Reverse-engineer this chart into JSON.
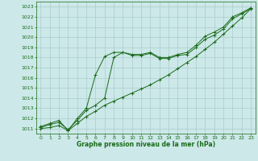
{
  "title": "Graphe pression niveau de la mer (hPa)",
  "bg_color": "#cce8e8",
  "grid_color": "#aacccc",
  "line_color": "#1a6b1a",
  "text_color": "#1a6b1a",
  "xlim": [
    -0.5,
    23.5
  ],
  "ylim": [
    1010.5,
    1023.5
  ],
  "xticks": [
    0,
    1,
    2,
    3,
    4,
    5,
    6,
    7,
    8,
    9,
    10,
    11,
    12,
    13,
    14,
    15,
    16,
    17,
    18,
    19,
    20,
    21,
    22,
    23
  ],
  "yticks": [
    1011,
    1012,
    1013,
    1014,
    1015,
    1016,
    1017,
    1018,
    1019,
    1020,
    1021,
    1022,
    1023
  ],
  "series": [
    {
      "x": [
        0,
        1,
        2,
        3,
        4,
        5,
        6,
        7,
        8,
        9,
        10,
        11,
        12,
        13,
        14,
        15,
        16,
        17,
        18,
        19,
        20,
        21,
        22,
        23
      ],
      "y": [
        1011.2,
        1011.5,
        1011.8,
        1010.8,
        1012.0,
        1013.0,
        1016.3,
        1018.1,
        1018.5,
        1018.5,
        1018.3,
        1018.3,
        1018.5,
        1018.0,
        1018.0,
        1018.3,
        1018.5,
        1019.2,
        1020.1,
        1020.5,
        1021.0,
        1022.0,
        1022.4,
        1022.9
      ]
    },
    {
      "x": [
        0,
        1,
        2,
        3,
        4,
        5,
        6,
        7,
        8,
        9,
        10,
        11,
        12,
        13,
        14,
        15,
        16,
        17,
        18,
        19,
        20,
        21,
        22,
        23
      ],
      "y": [
        1011.1,
        1011.4,
        1011.6,
        1010.9,
        1011.8,
        1012.8,
        1013.3,
        1014.0,
        1018.0,
        1018.5,
        1018.2,
        1018.2,
        1018.4,
        1017.9,
        1017.9,
        1018.2,
        1018.3,
        1019.0,
        1019.8,
        1020.2,
        1020.8,
        1021.8,
        1022.3,
        1022.8
      ]
    },
    {
      "x": [
        0,
        1,
        2,
        3,
        4,
        5,
        6,
        7,
        8,
        9,
        10,
        11,
        12,
        13,
        14,
        15,
        16,
        17,
        18,
        19,
        20,
        21,
        22,
        23
      ],
      "y": [
        1011.0,
        1011.1,
        1011.3,
        1010.8,
        1011.5,
        1012.2,
        1012.7,
        1013.3,
        1013.7,
        1014.1,
        1014.5,
        1014.9,
        1015.3,
        1015.8,
        1016.3,
        1016.9,
        1017.5,
        1018.1,
        1018.8,
        1019.5,
        1020.3,
        1021.1,
        1021.9,
        1022.8
      ]
    }
  ]
}
